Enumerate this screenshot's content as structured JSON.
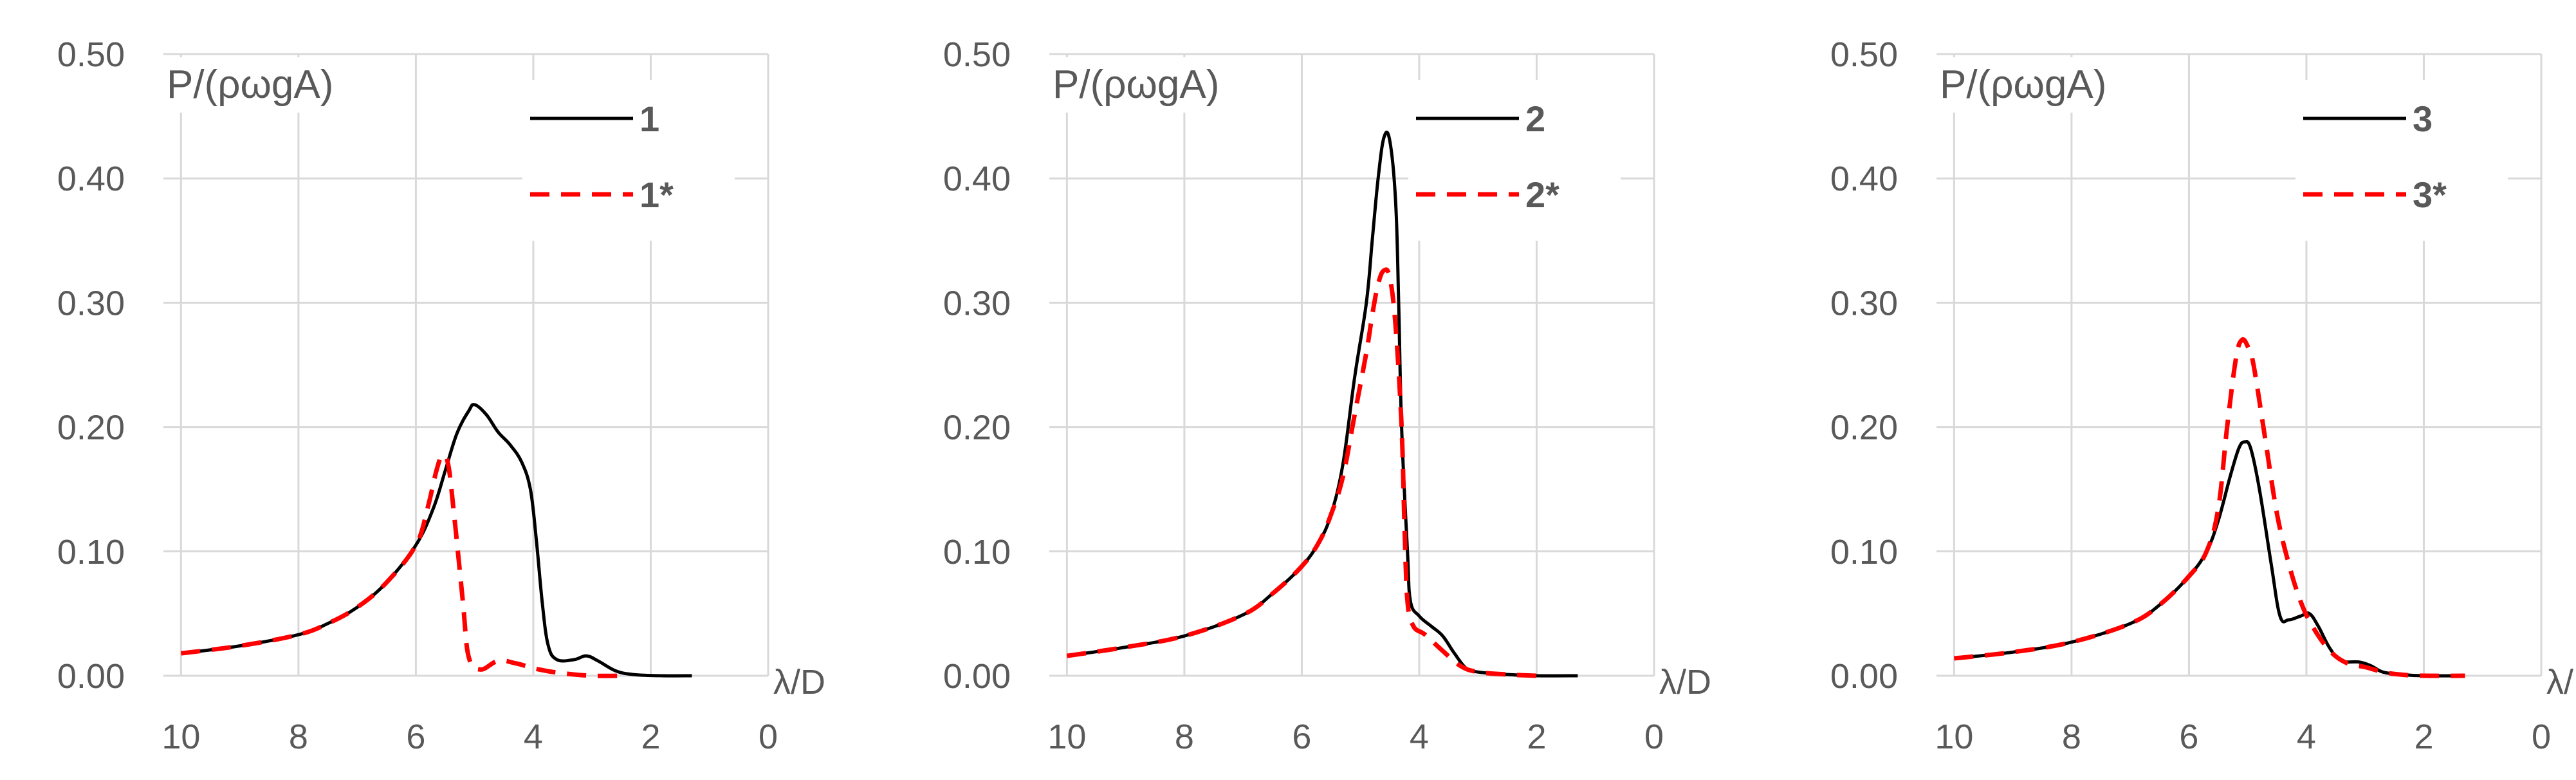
{
  "chart_data": [
    {
      "type": "line",
      "ylabel": "P/(ρωgA)",
      "xlabel": "λ/D",
      "xlim": [
        10.3,
        0
      ],
      "ylim": [
        0,
        0.5
      ],
      "x_ticks": [
        "10",
        "8",
        "6",
        "4",
        "2",
        "0"
      ],
      "y_ticks": [
        "0.00",
        "0.10",
        "0.20",
        "0.30",
        "0.40",
        "0.50"
      ],
      "grid": true,
      "legend_position": "top-right",
      "colors": [
        "#000000",
        "#ff0000"
      ],
      "series": [
        {
          "name": "1",
          "style": "solid",
          "points": [
            [
              10,
              0.018
            ],
            [
              9,
              0.024
            ],
            [
              8,
              0.033
            ],
            [
              7.5,
              0.042
            ],
            [
              7,
              0.055
            ],
            [
              6.5,
              0.075
            ],
            [
              6,
              0.105
            ],
            [
              5.7,
              0.135
            ],
            [
              5.5,
              0.165
            ],
            [
              5.3,
              0.195
            ],
            [
              5.1,
              0.213
            ],
            [
              5.0,
              0.218
            ],
            [
              4.8,
              0.21
            ],
            [
              4.6,
              0.196
            ],
            [
              4.4,
              0.186
            ],
            [
              4.2,
              0.172
            ],
            [
              4.05,
              0.15
            ],
            [
              3.95,
              0.11
            ],
            [
              3.85,
              0.06
            ],
            [
              3.75,
              0.025
            ],
            [
              3.6,
              0.013
            ],
            [
              3.3,
              0.013
            ],
            [
              3.1,
              0.016
            ],
            [
              2.9,
              0.012
            ],
            [
              2.6,
              0.004
            ],
            [
              2.3,
              0.001
            ],
            [
              1.8,
              0.0
            ],
            [
              1.3,
              0.0
            ]
          ]
        },
        {
          "name": "1*",
          "style": "dashed",
          "points": [
            [
              10,
              0.018
            ],
            [
              9,
              0.024
            ],
            [
              8,
              0.033
            ],
            [
              7.5,
              0.042
            ],
            [
              7,
              0.055
            ],
            [
              6.5,
              0.075
            ],
            [
              6,
              0.105
            ],
            [
              5.8,
              0.135
            ],
            [
              5.65,
              0.165
            ],
            [
              5.55,
              0.177
            ],
            [
              5.45,
              0.17
            ],
            [
              5.35,
              0.13
            ],
            [
              5.2,
              0.06
            ],
            [
              5.1,
              0.015
            ],
            [
              4.9,
              0.005
            ],
            [
              4.6,
              0.012
            ],
            [
              4.3,
              0.01
            ],
            [
              3.9,
              0.005
            ],
            [
              3.5,
              0.002
            ],
            [
              3.0,
              0.0
            ],
            [
              2.5,
              0.0
            ]
          ]
        }
      ]
    },
    {
      "type": "line",
      "ylabel": "P/(ρωgA)",
      "xlabel": "λ/D",
      "xlim": [
        10.3,
        0
      ],
      "ylim": [
        0,
        0.5
      ],
      "x_ticks": [
        "10",
        "8",
        "6",
        "4",
        "2",
        "0"
      ],
      "y_ticks": [
        "0.00",
        "0.10",
        "0.20",
        "0.30",
        "0.40",
        "0.50"
      ],
      "grid": true,
      "legend_position": "top-right",
      "colors": [
        "#000000",
        "#ff0000"
      ],
      "series": [
        {
          "name": "2",
          "style": "solid",
          "points": [
            [
              10,
              0.016
            ],
            [
              9,
              0.023
            ],
            [
              8,
              0.032
            ],
            [
              7,
              0.049
            ],
            [
              6.5,
              0.066
            ],
            [
              6,
              0.088
            ],
            [
              5.7,
              0.108
            ],
            [
              5.5,
              0.13
            ],
            [
              5.3,
              0.17
            ],
            [
              5.1,
              0.24
            ],
            [
              4.9,
              0.3
            ],
            [
              4.8,
              0.35
            ],
            [
              4.7,
              0.4
            ],
            [
              4.6,
              0.433
            ],
            [
              4.5,
              0.43
            ],
            [
              4.4,
              0.38
            ],
            [
              4.35,
              0.3
            ],
            [
              4.3,
              0.2
            ],
            [
              4.2,
              0.1
            ],
            [
              4.15,
              0.06
            ],
            [
              4.0,
              0.048
            ],
            [
              3.8,
              0.04
            ],
            [
              3.6,
              0.032
            ],
            [
              3.4,
              0.018
            ],
            [
              3.2,
              0.006
            ],
            [
              3.0,
              0.003
            ],
            [
              2.5,
              0.001
            ],
            [
              2.0,
              0.0
            ],
            [
              1.3,
              0.0
            ]
          ]
        },
        {
          "name": "2*",
          "style": "dashed",
          "points": [
            [
              10,
              0.016
            ],
            [
              9,
              0.023
            ],
            [
              8,
              0.032
            ],
            [
              7,
              0.049
            ],
            [
              6.5,
              0.066
            ],
            [
              6,
              0.088
            ],
            [
              5.7,
              0.108
            ],
            [
              5.5,
              0.13
            ],
            [
              5.3,
              0.16
            ],
            [
              5.1,
              0.21
            ],
            [
              4.9,
              0.26
            ],
            [
              4.8,
              0.29
            ],
            [
              4.7,
              0.315
            ],
            [
              4.6,
              0.326
            ],
            [
              4.5,
              0.32
            ],
            [
              4.4,
              0.28
            ],
            [
              4.3,
              0.2
            ],
            [
              4.25,
              0.12
            ],
            [
              4.2,
              0.06
            ],
            [
              4.1,
              0.04
            ],
            [
              3.9,
              0.033
            ],
            [
              3.6,
              0.02
            ],
            [
              3.3,
              0.008
            ],
            [
              3.0,
              0.003
            ],
            [
              2.5,
              0.001
            ],
            [
              2.0,
              0.0
            ]
          ]
        }
      ]
    },
    {
      "type": "line",
      "ylabel": "P/(ρωgA)",
      "xlabel": "λ/D",
      "xlim": [
        10.3,
        0
      ],
      "ylim": [
        0,
        0.5
      ],
      "x_ticks": [
        "10",
        "8",
        "6",
        "4",
        "2",
        "0"
      ],
      "y_ticks": [
        "0.00",
        "0.10",
        "0.20",
        "0.30",
        "0.40",
        "0.50"
      ],
      "grid": true,
      "legend_position": "top-right",
      "colors": [
        "#000000",
        "#ff0000"
      ],
      "series": [
        {
          "name": "3",
          "style": "solid",
          "points": [
            [
              10,
              0.014
            ],
            [
              9,
              0.019
            ],
            [
              8,
              0.027
            ],
            [
              7,
              0.042
            ],
            [
              6.5,
              0.057
            ],
            [
              6,
              0.08
            ],
            [
              5.7,
              0.1
            ],
            [
              5.5,
              0.125
            ],
            [
              5.3,
              0.16
            ],
            [
              5.15,
              0.183
            ],
            [
              5.05,
              0.188
            ],
            [
              4.95,
              0.183
            ],
            [
              4.8,
              0.15
            ],
            [
              4.6,
              0.09
            ],
            [
              4.45,
              0.048
            ],
            [
              4.3,
              0.045
            ],
            [
              4.1,
              0.048
            ],
            [
              3.95,
              0.05
            ],
            [
              3.8,
              0.04
            ],
            [
              3.6,
              0.022
            ],
            [
              3.4,
              0.012
            ],
            [
              3.1,
              0.011
            ],
            [
              2.9,
              0.008
            ],
            [
              2.7,
              0.003
            ],
            [
              2.4,
              0.001
            ],
            [
              2.0,
              0.0
            ],
            [
              1.3,
              0.0
            ]
          ]
        },
        {
          "name": "3*",
          "style": "dashed",
          "points": [
            [
              10,
              0.014
            ],
            [
              9,
              0.019
            ],
            [
              8,
              0.027
            ],
            [
              7,
              0.042
            ],
            [
              6.5,
              0.057
            ],
            [
              6,
              0.08
            ],
            [
              5.7,
              0.1
            ],
            [
              5.5,
              0.135
            ],
            [
              5.35,
              0.2
            ],
            [
              5.2,
              0.255
            ],
            [
              5.1,
              0.27
            ],
            [
              5.0,
              0.265
            ],
            [
              4.9,
              0.25
            ],
            [
              4.7,
              0.19
            ],
            [
              4.5,
              0.13
            ],
            [
              4.3,
              0.09
            ],
            [
              4.1,
              0.06
            ],
            [
              3.9,
              0.04
            ],
            [
              3.6,
              0.02
            ],
            [
              3.3,
              0.01
            ],
            [
              3.0,
              0.007
            ],
            [
              2.7,
              0.003
            ],
            [
              2.4,
              0.001
            ],
            [
              2.0,
              0.0
            ],
            [
              1.3,
              0.0
            ]
          ]
        }
      ]
    }
  ]
}
